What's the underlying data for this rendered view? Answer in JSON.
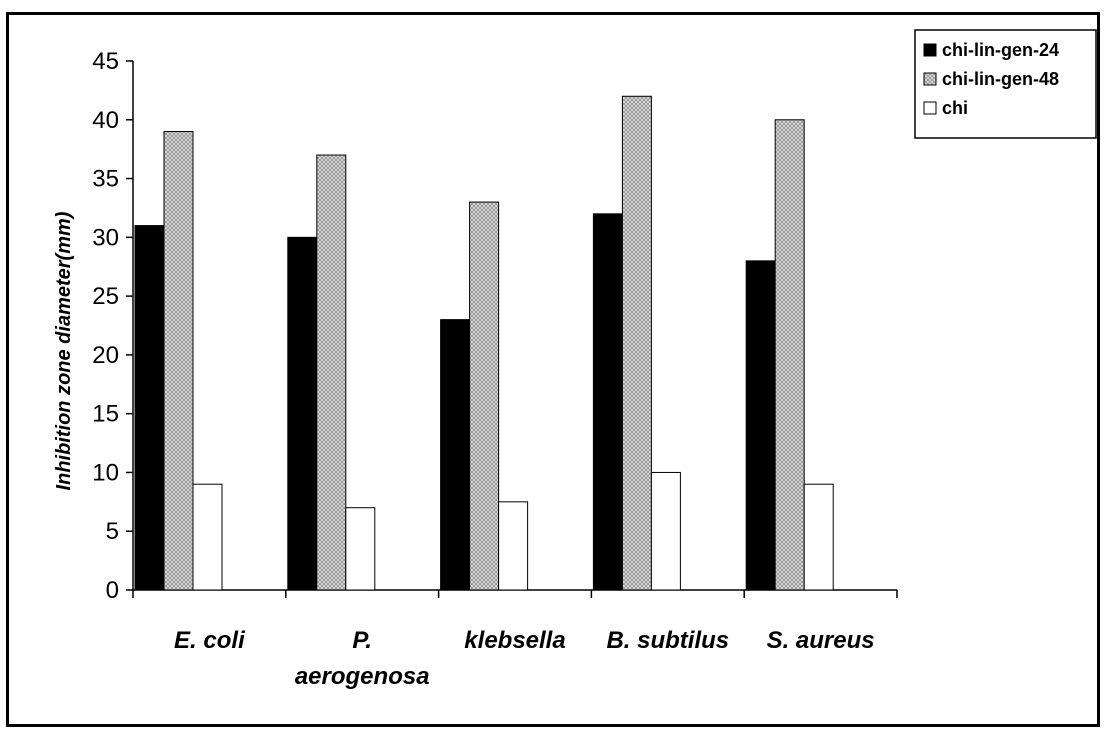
{
  "chart_data": {
    "type": "bar",
    "title": "",
    "xlabel": "",
    "ylabel": "Inhibition zone diameter(mm)",
    "categories": [
      [
        "E. coli"
      ],
      [
        "P.",
        "aerogenosa"
      ],
      [
        "klebsella"
      ],
      [
        "B. subtilus"
      ],
      [
        "S. aureus"
      ]
    ],
    "series": [
      {
        "name": "chi-lin-gen-24",
        "values": [
          31,
          30,
          23,
          32,
          28
        ],
        "fill": "solid",
        "color": "#000000"
      },
      {
        "name": "chi-lin-gen-48",
        "values": [
          39,
          37,
          33,
          42,
          40
        ],
        "fill": "crosshatch",
        "color": "#bdbdbd"
      },
      {
        "name": "chi",
        "values": [
          9,
          7,
          7.5,
          10,
          9
        ],
        "fill": "empty",
        "color": "#ffffff"
      }
    ],
    "ylim": [
      0,
      45
    ],
    "yticks": [
      0,
      5,
      10,
      15,
      20,
      25,
      30,
      35,
      40,
      45
    ],
    "grid": false,
    "legend_position": "top-right"
  }
}
